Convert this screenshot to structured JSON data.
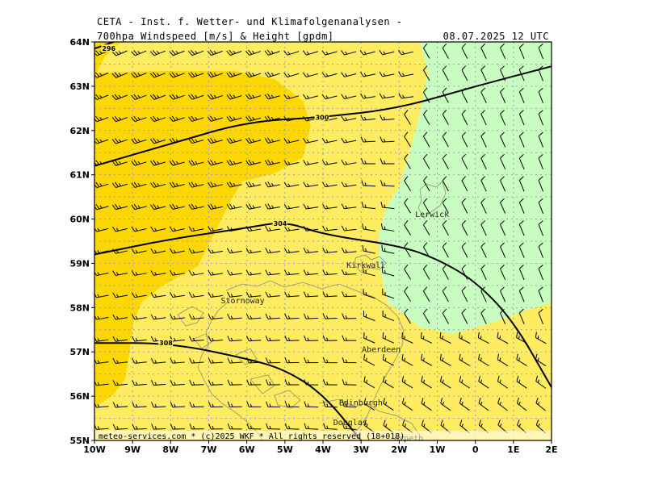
{
  "header": {
    "title": "CETA - Inst. f. Wetter- und Klimafolgenanalysen -",
    "parameter": "700hpa Windspeed [m/s] & Height [gpdm]",
    "datetime": "08.07.2025 12 UTC"
  },
  "footer": {
    "copyright": "meteo-services.com * (c)2025 WKF * All rights reserved (18+018)"
  },
  "axes": {
    "lon_labels": [
      "10W",
      "9W",
      "8W",
      "7W",
      "6W",
      "5W",
      "4W",
      "3W",
      "2W",
      "1W",
      "0",
      "1E",
      "2E"
    ],
    "lat_labels": [
      "64N",
      "63N",
      "62N",
      "61N",
      "60N",
      "59N",
      "58N",
      "57N",
      "56N",
      "55N"
    ]
  },
  "colors": {
    "band_15_20": "#ffd700",
    "band_10_15": "#ffec60",
    "band_5_10": "#c8ffc0",
    "contour": "#000000",
    "grid": "#9aa0b8",
    "coast": "#8c8c7a"
  },
  "contours": [
    {
      "label": "300",
      "points": [
        [
          -10,
          61.2
        ],
        [
          -8,
          61.7
        ],
        [
          -6,
          62.2
        ],
        [
          -4,
          62.3
        ],
        [
          -2,
          62.5
        ],
        [
          0,
          63.0
        ],
        [
          2,
          63.45
        ]
      ]
    },
    {
      "label": "304",
      "points": [
        [
          -10,
          59.2
        ],
        [
          -8,
          59.55
        ],
        [
          -6,
          59.8
        ],
        [
          -5,
          59.95
        ],
        [
          -4,
          59.65
        ],
        [
          -2,
          59.4
        ],
        [
          -1,
          59.1
        ],
        [
          0,
          58.6
        ],
        [
          1,
          57.7
        ],
        [
          2,
          56.2
        ]
      ]
    },
    {
      "label": "308",
      "points": [
        [
          -10,
          57.2
        ],
        [
          -8,
          57.2
        ],
        [
          -6,
          56.85
        ],
        [
          -5,
          56.6
        ],
        [
          -4,
          56.05
        ],
        [
          -3,
          55.0
        ]
      ]
    },
    {
      "label": "296",
      "points": [
        [
          -10,
          63.85
        ],
        [
          -9.5,
          64.0
        ]
      ]
    }
  ],
  "places": [
    {
      "name": "Lerwick",
      "lon": -1.2,
      "lat": 60.1
    },
    {
      "name": "Kirkwall",
      "lon": -3.0,
      "lat": 58.95
    },
    {
      "name": "Stornoway",
      "lon": -6.3,
      "lat": 58.15
    },
    {
      "name": "Aberdeen",
      "lon": -2.6,
      "lat": 57.05
    },
    {
      "name": "Edinburgh",
      "lon": -3.2,
      "lat": 55.85
    },
    {
      "name": "Douglas",
      "lon": -3.35,
      "lat": 55.4
    },
    {
      "name": "orpeth",
      "lon": -1.75,
      "lat": 55.05
    }
  ]
}
